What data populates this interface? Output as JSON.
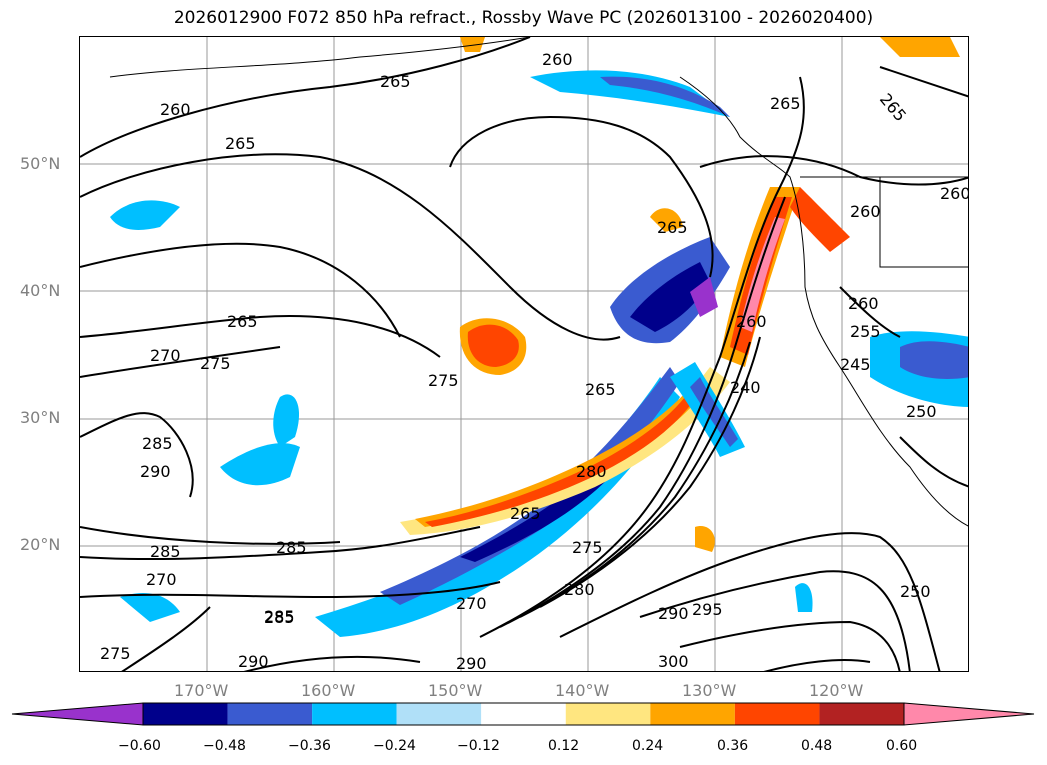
{
  "title": "2026012900 F072 850 hPa refract., Rossby Wave PC (2026013100 - 2026020400)",
  "lat_labels": [
    "50°N",
    "40°N",
    "30°N",
    "20°N"
  ],
  "lon_labels": [
    "170°W",
    "160°W",
    "150°W",
    "140°W",
    "130°W",
    "120°W"
  ],
  "colorbar": {
    "ticks": [
      "−0.60",
      "−0.48",
      "−0.36",
      "−0.24",
      "−0.12",
      "0.12",
      "0.24",
      "0.36",
      "0.48",
      "0.60"
    ],
    "colors": [
      "#9932cc",
      "#00008b",
      "#3a5bd0",
      "#00bfff",
      "#b0e0f8",
      "#ffffff",
      "#ffe680",
      "#ffa500",
      "#ff4500",
      "#b22222",
      "#ff88aa"
    ]
  },
  "contour_labels": [
    "260",
    "265",
    "260",
    "265",
    "265",
    "260",
    "265",
    "265",
    "265",
    "260",
    "265",
    "270",
    "275",
    "275",
    "265",
    "290",
    "285",
    "280",
    "285",
    "285",
    "285",
    "270",
    "275",
    "270",
    "280",
    "290",
    "295",
    "250",
    "300",
    "290",
    "290",
    "285",
    "275",
    "240",
    "260",
    "255",
    "245",
    "260",
    "250"
  ]
}
